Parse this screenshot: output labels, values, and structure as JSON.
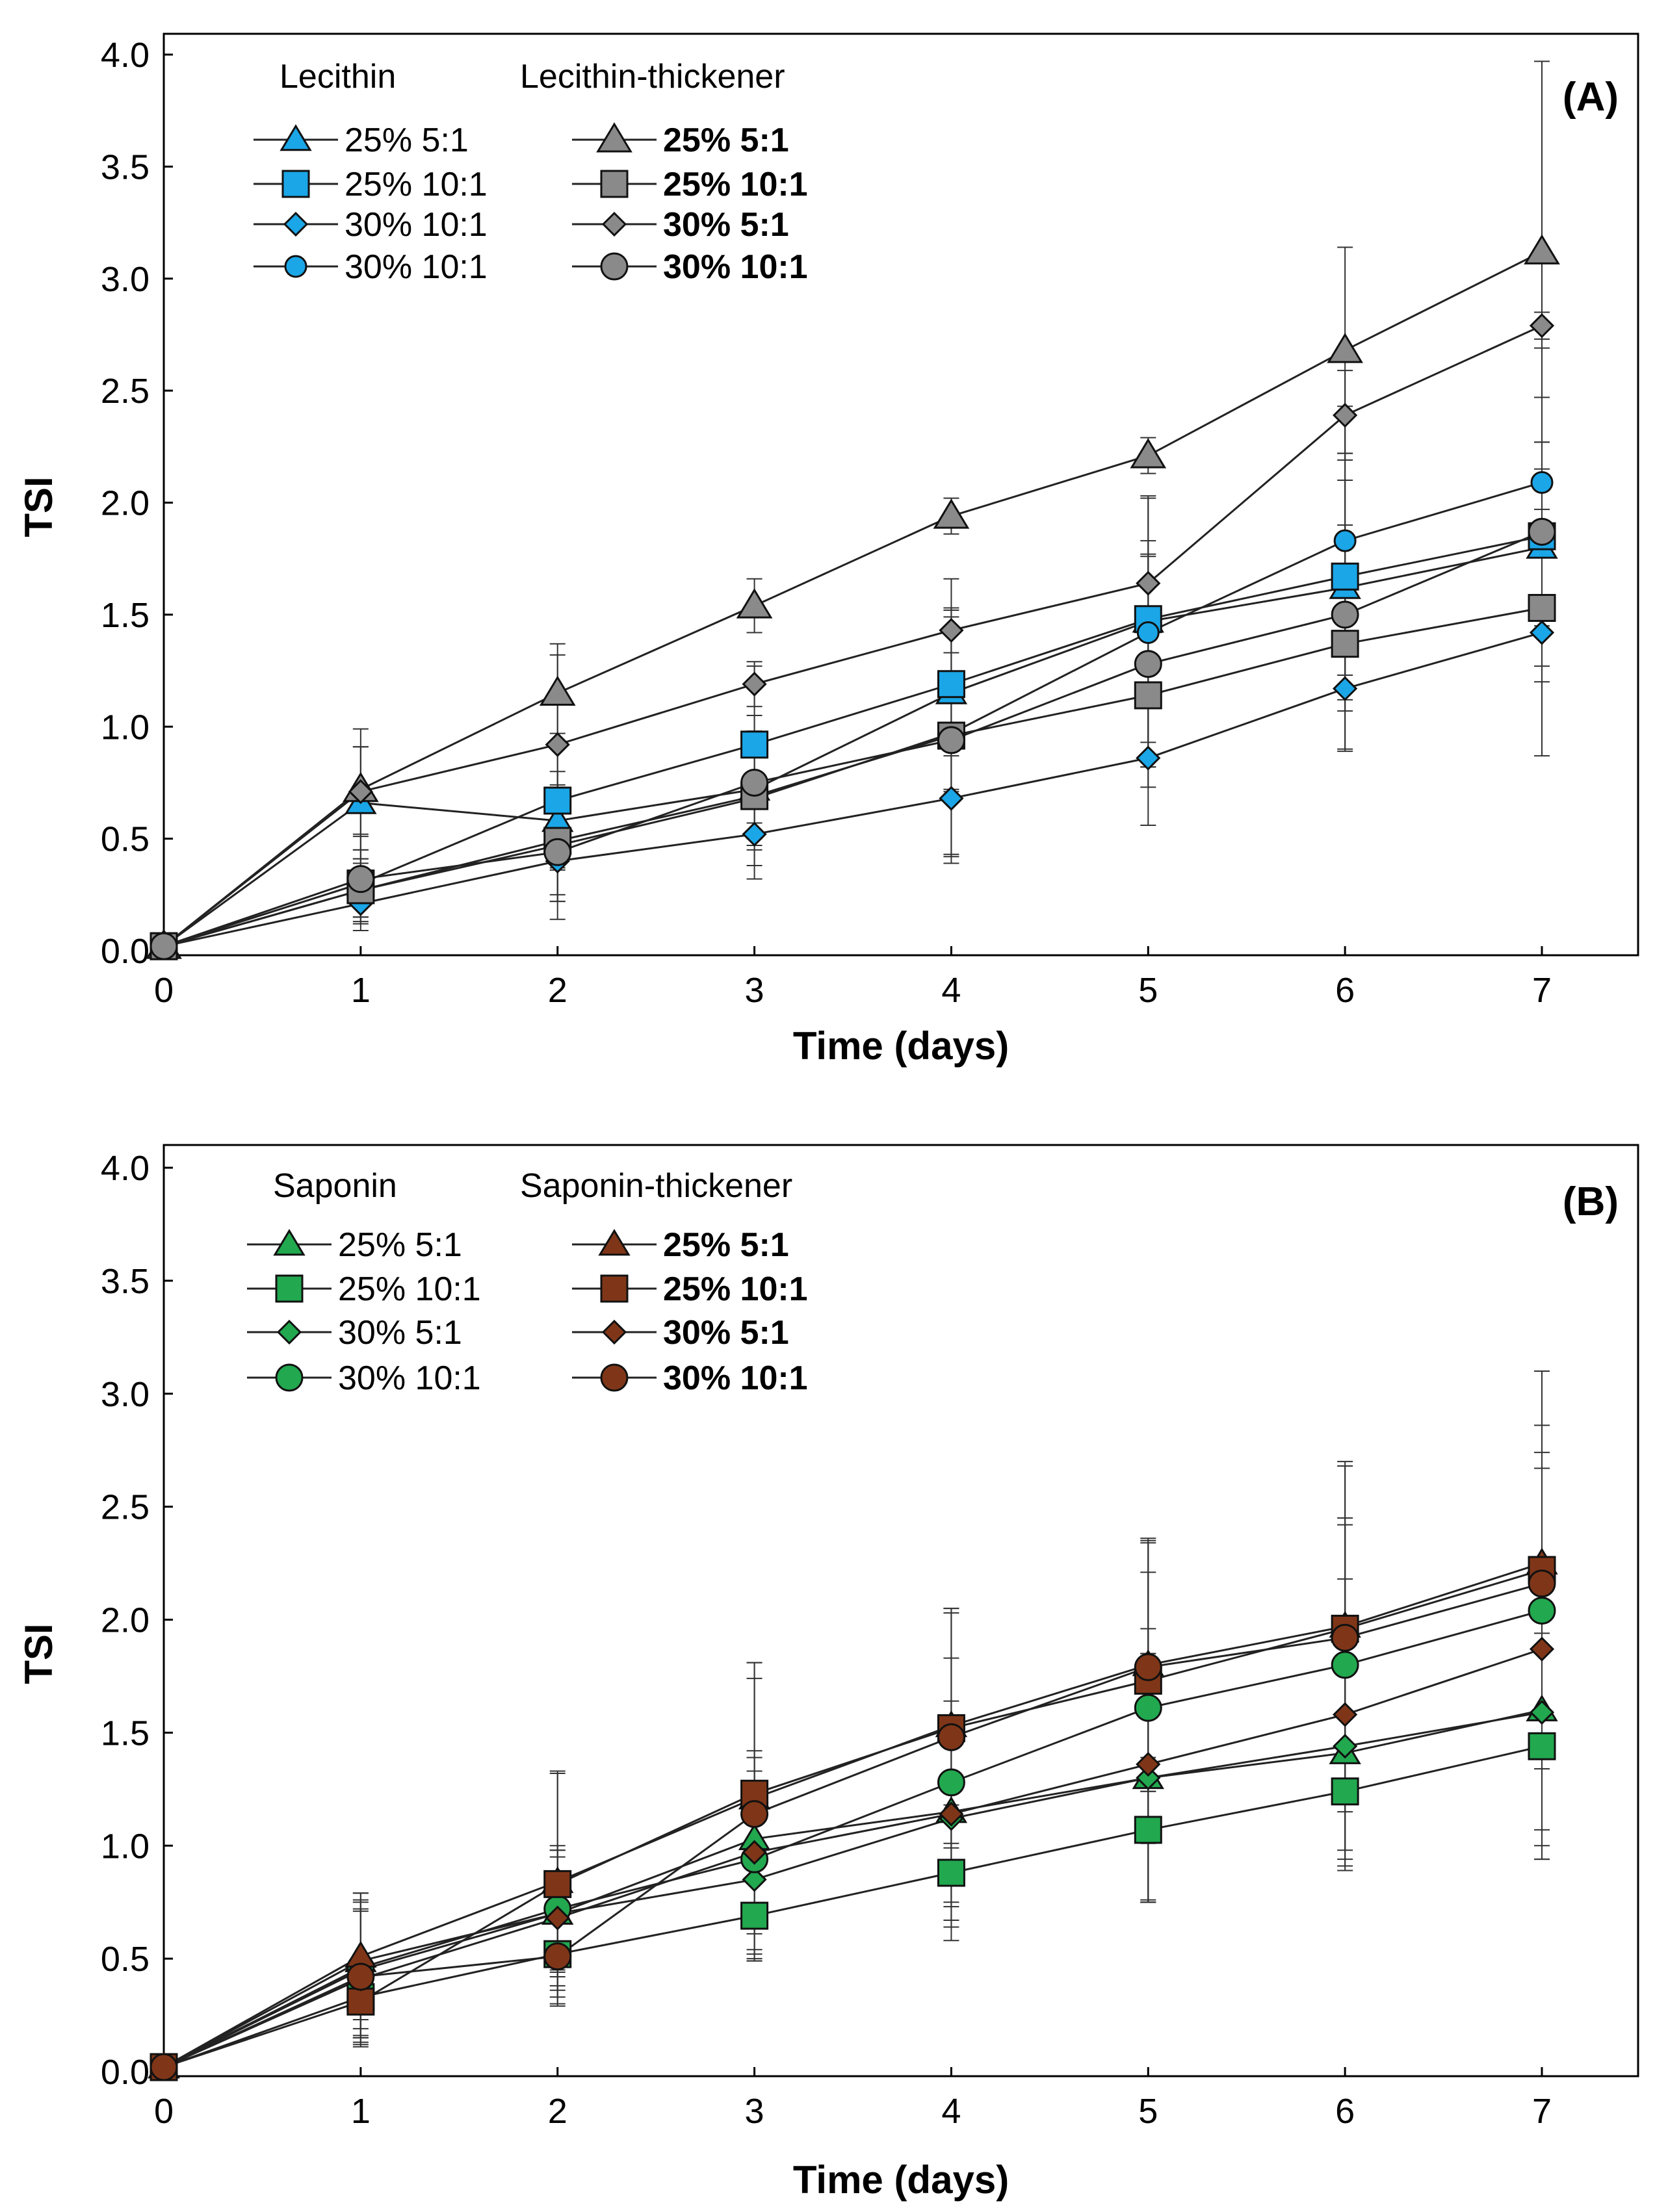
{
  "colors": {
    "lecithin": "#1ba6e8",
    "lecithin_thickener": "#8a8a8a",
    "saponin": "#22a84f",
    "saponin_thickener": "#7f3618",
    "line": "#222222",
    "axis": "#000000"
  },
  "chart_data": [
    {
      "type": "line",
      "panel_label": "(A)",
      "xlabel": "Time (days)",
      "ylabel": "TSI",
      "xlim": [
        0,
        7
      ],
      "ylim": [
        0,
        4.0
      ],
      "x_ticks": [
        "0",
        "1",
        "2",
        "3",
        "4",
        "5",
        "6",
        "7"
      ],
      "y_ticks": [
        "0.0",
        "0.5",
        "1.0",
        "1.5",
        "2.0",
        "2.5",
        "3.0",
        "3.5",
        "4.0"
      ],
      "grid": false,
      "legend_placement": "top-left",
      "legend_groups": [
        {
          "title": "Lecithin",
          "bold": false
        },
        {
          "title": "Lecithin-thickener",
          "bold": true
        }
      ],
      "x": [
        0,
        1,
        2,
        3,
        4,
        5,
        6,
        7
      ],
      "series": [
        {
          "name": "25% 5:1",
          "group": 0,
          "marker": "triangle",
          "size": "small",
          "values": [
            0.02,
            0.66,
            0.58,
            0.72,
            1.15,
            1.47,
            1.62,
            1.8
          ],
          "errors": [
            0.0,
            0.25,
            0.22,
            0.22,
            0.28,
            0.3,
            0.28,
            0.35
          ]
        },
        {
          "name": "25% 10:1",
          "group": 0,
          "marker": "square",
          "size": "large",
          "values": [
            0.02,
            0.3,
            0.67,
            0.92,
            1.19,
            1.48,
            1.67,
            1.85
          ],
          "errors": [
            0.0,
            0.15,
            0.3,
            0.35,
            0.47,
            0.55,
            0.55,
            0.42
          ]
        },
        {
          "name": "30% 10:1",
          "group": 0,
          "marker": "diamond",
          "size": "small",
          "values": [
            0.02,
            0.21,
            0.4,
            0.52,
            0.68,
            0.86,
            1.17,
            1.42
          ],
          "errors": [
            0.0,
            0.12,
            0.18,
            0.2,
            0.25,
            0.3,
            0.28,
            0.55
          ]
        },
        {
          "name": "30% 10:1",
          "group": 0,
          "marker": "circle",
          "size": "small",
          "values": [
            0.02,
            0.27,
            0.47,
            0.68,
            0.97,
            1.42,
            1.83,
            2.09
          ],
          "errors": [
            0.0,
            0.14,
            0.25,
            0.3,
            0.55,
            0.6,
            0.6,
            0.6
          ]
        },
        {
          "name": "25% 5:1",
          "group": 1,
          "marker": "triangle",
          "size": "large",
          "values": [
            0.02,
            0.72,
            1.15,
            1.54,
            1.94,
            2.21,
            2.68,
            3.12
          ],
          "errors": [
            0.0,
            0.27,
            0.22,
            0.12,
            0.08,
            0.08,
            0.46,
            0.85
          ]
        },
        {
          "name": "25% 10:1",
          "group": 1,
          "marker": "square",
          "size": "large",
          "values": [
            0.02,
            0.27,
            0.49,
            0.69,
            0.96,
            1.14,
            1.37,
            1.53
          ],
          "errors": [
            0.0,
            0.12,
            0.24,
            0.22,
            0.25,
            0.32,
            0.3,
            0.33
          ]
        },
        {
          "name": "30% 5:1",
          "group": 1,
          "marker": "diamond",
          "size": "small",
          "values": [
            0.02,
            0.71,
            0.92,
            1.19,
            1.43,
            1.64,
            2.39,
            2.79
          ],
          "errors": [
            0.0,
            0.2,
            0.4,
            0.1,
            0.1,
            0.12,
            0.2,
            0.06
          ]
        },
        {
          "name": "30% 10:1",
          "group": 1,
          "marker": "circle",
          "size": "large",
          "values": [
            0.02,
            0.32,
            0.44,
            0.75,
            0.94,
            1.28,
            1.5,
            1.87
          ],
          "errors": [
            0.0,
            0.2,
            0.3,
            0.3,
            0.55,
            0.55,
            0.6,
            0.6
          ]
        }
      ]
    },
    {
      "type": "line",
      "panel_label": "(B)",
      "xlabel": "Time (days)",
      "ylabel": "TSI",
      "xlim": [
        0,
        7
      ],
      "ylim": [
        0,
        4.0
      ],
      "x_ticks": [
        "0",
        "1",
        "2",
        "3",
        "4",
        "5",
        "6",
        "7"
      ],
      "y_ticks": [
        "0.0",
        "0.5",
        "1.0",
        "1.5",
        "2.0",
        "2.5",
        "3.0",
        "3.5",
        "4.0"
      ],
      "grid": false,
      "legend_placement": "top-left",
      "legend_groups": [
        {
          "title": "Saponin",
          "bold": false
        },
        {
          "title": "Saponin-thickener",
          "bold": true
        }
      ],
      "x": [
        0,
        1,
        2,
        3,
        4,
        5,
        6,
        7
      ],
      "series": [
        {
          "name": "25% 5:1",
          "group": 0,
          "marker": "triangle",
          "size": "small",
          "values": [
            0.02,
            0.49,
            0.7,
            1.03,
            1.15,
            1.3,
            1.41,
            1.6
          ],
          "errors": [
            0.0,
            0.3,
            0.28,
            0.3,
            0.4,
            0.55,
            0.5,
            0.6
          ]
        },
        {
          "name": "25% 10:1",
          "group": 0,
          "marker": "square",
          "size": "large",
          "values": [
            0.02,
            0.33,
            0.52,
            0.69,
            0.88,
            1.07,
            1.24,
            1.44
          ],
          "errors": [
            0.0,
            0.18,
            0.22,
            0.2,
            0.3,
            0.32,
            0.35,
            0.5
          ]
        },
        {
          "name": "30% 5:1",
          "group": 0,
          "marker": "diamond",
          "size": "small",
          "values": [
            0.02,
            0.45,
            0.7,
            0.85,
            1.12,
            1.3,
            1.44,
            1.59
          ],
          "errors": [
            0.0,
            0.3,
            0.25,
            0.35,
            0.45,
            0.55,
            0.5,
            0.65
          ]
        },
        {
          "name": "30% 10:1",
          "group": 0,
          "marker": "circle",
          "size": "large",
          "values": [
            0.02,
            0.46,
            0.72,
            0.94,
            1.28,
            1.61,
            1.8,
            2.04
          ],
          "errors": [
            0.0,
            0.3,
            0.28,
            0.45,
            0.55,
            0.6,
            0.65,
            0.7
          ]
        },
        {
          "name": "25% 5:1",
          "group": 1,
          "marker": "triangle",
          "size": "small",
          "values": [
            0.02,
            0.51,
            0.84,
            1.21,
            1.53,
            1.8,
            1.97,
            2.25
          ],
          "errors": [
            0.0,
            0.28,
            0.48,
            0.6,
            0.52,
            0.56,
            0.73,
            0.85
          ]
        },
        {
          "name": "25% 10:1",
          "group": 1,
          "marker": "square",
          "size": "large",
          "values": [
            0.02,
            0.31,
            0.83,
            1.23,
            1.52,
            1.73,
            1.96,
            2.22
          ],
          "errors": [
            0.0,
            0.18,
            0.5,
            0.58,
            0.53,
            0.62,
            0.72,
            0.88
          ]
        },
        {
          "name": "30% 5:1",
          "group": 1,
          "marker": "diamond",
          "size": "small",
          "values": [
            0.02,
            0.41,
            0.68,
            0.97,
            1.14,
            1.36,
            1.58,
            1.87
          ],
          "errors": [
            0.0,
            0.3,
            0.3,
            0.45,
            0.5,
            0.6,
            0.6,
            0.8
          ]
        },
        {
          "name": "30% 10:1",
          "group": 1,
          "marker": "circle",
          "size": "large",
          "values": [
            0.02,
            0.42,
            0.51,
            1.14,
            1.48,
            1.79,
            1.92,
            2.16
          ],
          "errors": [
            0.0,
            0.3,
            0.22,
            0.6,
            0.55,
            0.55,
            0.5,
            0.7
          ]
        }
      ]
    }
  ]
}
